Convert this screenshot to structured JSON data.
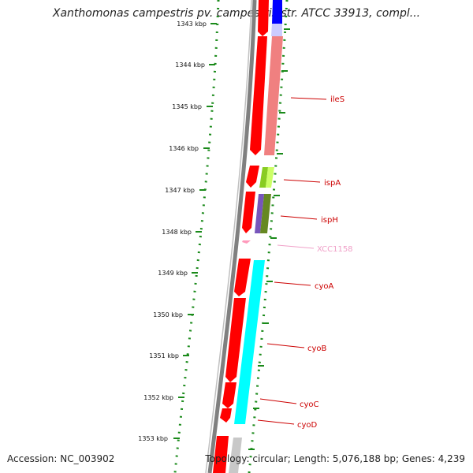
{
  "header": {
    "title": "Xanthomonas campestris pv. campestris str. ATCC 33913, compl..."
  },
  "footer": {
    "accession": "Accession: NC_003902",
    "summary": "Topology: circular; Length: 5,076,188 bp; Genes: 4,239"
  },
  "map": {
    "ticks": [
      "1343 kbp",
      "1344 kbp",
      "1345 kbp",
      "1346 kbp",
      "1347 kbp",
      "1348 kbp",
      "1349 kbp",
      "1350 kbp",
      "1351 kbp",
      "1352 kbp",
      "1353 kbp"
    ],
    "genes": [
      {
        "name": "ileS",
        "color": "#cc0000"
      },
      {
        "name": "ispA",
        "color": "#cc0000"
      },
      {
        "name": "ispH",
        "color": "#cc0000"
      },
      {
        "name": "XCC1158",
        "color": "#f0a0c8"
      },
      {
        "name": "cyoA",
        "color": "#cc0000"
      },
      {
        "name": "cyoB",
        "color": "#cc0000"
      },
      {
        "name": "cyoC",
        "color": "#cc0000"
      },
      {
        "name": "cyoD",
        "color": "#cc0000"
      }
    ],
    "colors": {
      "cds": "#ff0000",
      "backbone": "#808080",
      "tick_dots": "#1a8a1a",
      "highlight_blue": "#0000ff",
      "highlight_salmon": "#f08080",
      "highlight_green": "#99cc33",
      "highlight_purple": "#7755bb",
      "highlight_olive": "#668822",
      "highlight_cyan": "#00ffff"
    }
  }
}
